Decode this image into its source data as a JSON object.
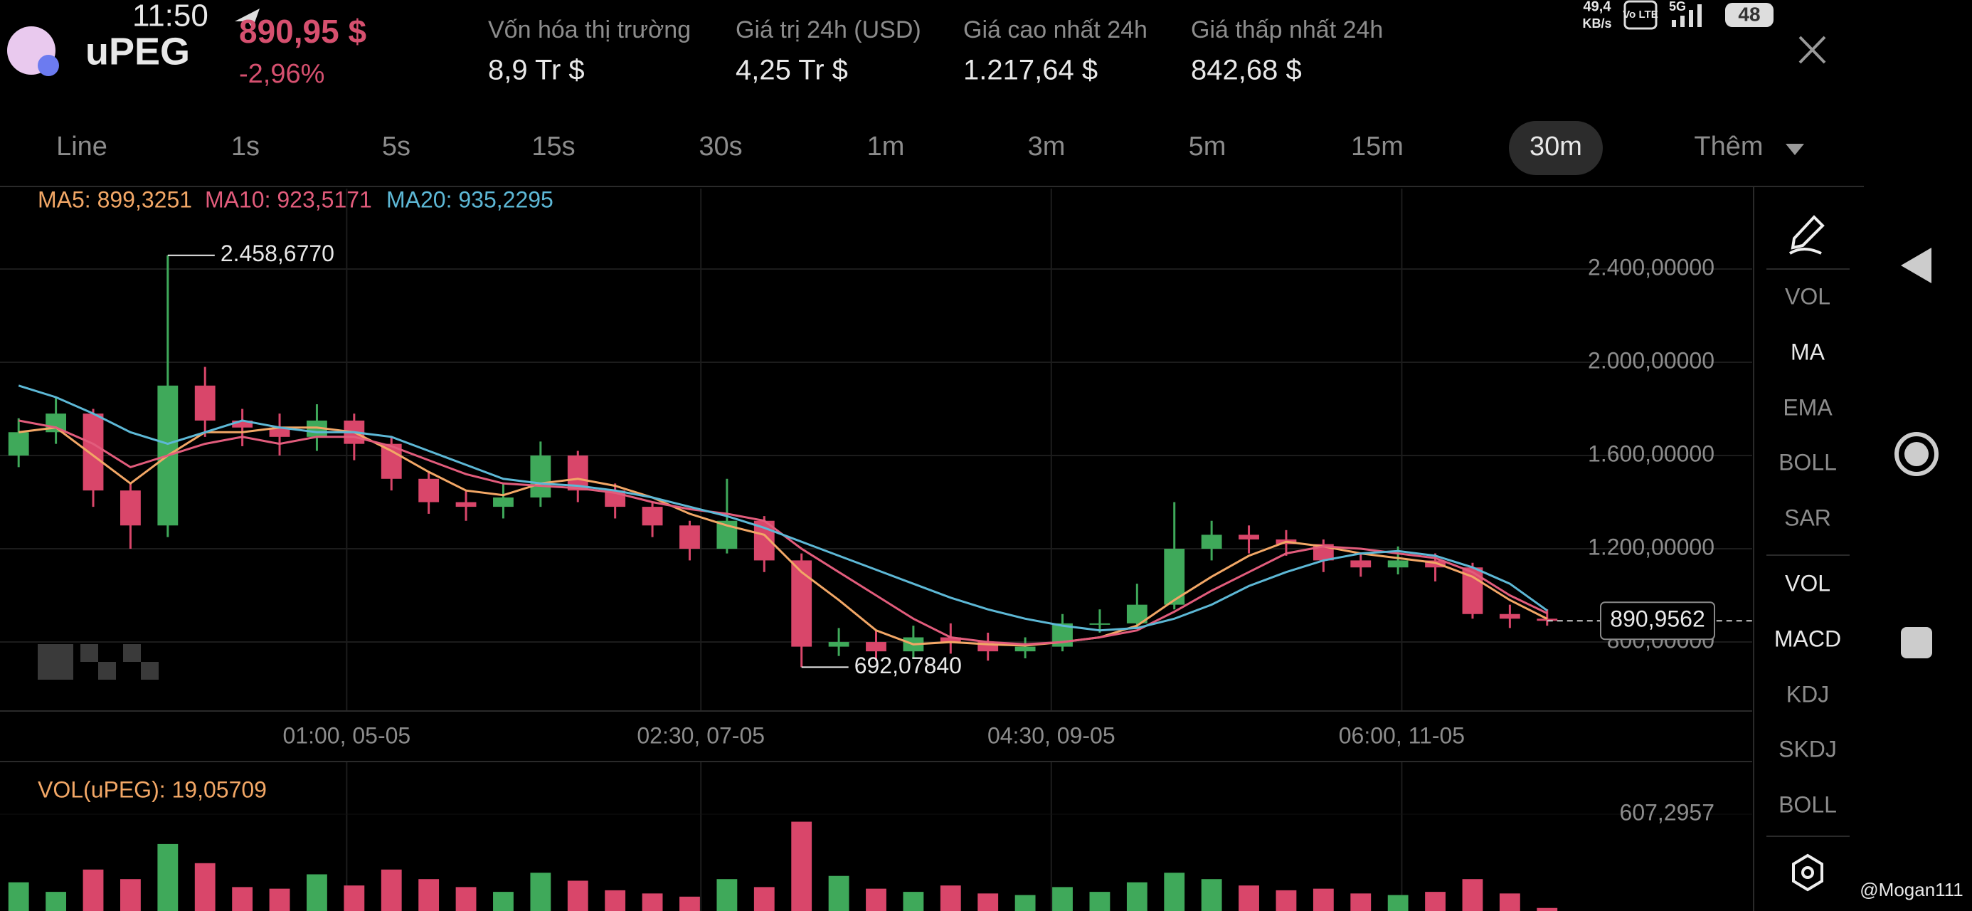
{
  "status_bar": {
    "time": "11:50",
    "net_speed": "49,4",
    "net_unit": "KB/s",
    "volte": "Vo LTE",
    "signal": "5G",
    "battery": "48"
  },
  "header": {
    "symbol": "uPEG",
    "price": "890,95 $",
    "change": "-2,96%",
    "stats": [
      {
        "label": "Vốn hóa thị trường",
        "value": "8,9 Tr $"
      },
      {
        "label": "Giá trị 24h (USD)",
        "value": "4,25 Tr $"
      },
      {
        "label": "Giá cao nhất 24h",
        "value": "1.217,64 $"
      },
      {
        "label": "Giá thấp nhất 24h",
        "value": "842,68 $"
      }
    ]
  },
  "timeframes": {
    "items": [
      "Line",
      "1s",
      "5s",
      "15s",
      "30s",
      "1m",
      "3m",
      "5m",
      "15m",
      "30m",
      "Thêm"
    ],
    "active": 9
  },
  "indicator_menu": {
    "main": [
      "VOL",
      "MA",
      "EMA",
      "BOLL",
      "SAR"
    ],
    "main_active": 1,
    "sub": [
      "VOL",
      "MACD",
      "KDJ",
      "SKDJ",
      "BOLL"
    ],
    "sub_active": [
      0,
      1
    ]
  },
  "watermark": "@Mogan111",
  "chart_data": {
    "type": "candlestick",
    "up_color": "#3fa95a",
    "down_color": "#d9466a",
    "x": [
      0,
      1,
      2,
      3,
      4,
      5,
      6,
      7,
      8,
      9,
      10,
      11,
      12,
      13,
      14,
      15,
      16,
      17,
      18,
      19,
      20,
      21,
      22,
      23,
      24,
      25,
      26,
      27,
      28,
      29,
      30,
      31,
      32,
      33,
      34,
      35,
      36,
      37,
      38,
      39,
      40,
      41
    ],
    "xlim": [
      -0.5,
      46.5
    ],
    "xticks": [
      {
        "value": 8.8,
        "label": "01:00, 05-05"
      },
      {
        "value": 18.3,
        "label": "02:30, 07-05"
      },
      {
        "value": 27.7,
        "label": "04:30, 09-05"
      },
      {
        "value": 37.1,
        "label": "06:00, 11-05"
      }
    ],
    "ylim": [
      504,
      2745
    ],
    "yticks": [
      {
        "value": 800,
        "label": "800,00000"
      },
      {
        "value": 1200,
        "label": "1.200,00000"
      },
      {
        "value": 1600,
        "label": "1.600,00000"
      },
      {
        "value": 2000,
        "label": "2.000,00000"
      },
      {
        "value": 2400,
        "label": "2.400,00000"
      }
    ],
    "open": [
      1600,
      1700,
      1780,
      1450,
      1300,
      1900,
      1750,
      1720,
      1680,
      1750,
      1650,
      1500,
      1400,
      1380,
      1420,
      1600,
      1450,
      1380,
      1300,
      1200,
      1320,
      1150,
      780,
      800,
      760,
      820,
      800,
      760,
      780,
      880,
      880,
      960,
      1200,
      1260,
      1240,
      1220,
      1150,
      1120,
      1150,
      1120,
      920,
      900
    ],
    "high": [
      1760,
      1850,
      1800,
      1480,
      2458.677,
      1980,
      1800,
      1780,
      1820,
      1780,
      1680,
      1530,
      1450,
      1480,
      1660,
      1620,
      1480,
      1400,
      1320,
      1500,
      1340,
      1180,
      860,
      850,
      870,
      880,
      840,
      820,
      920,
      940,
      1050,
      1400,
      1320,
      1300,
      1280,
      1240,
      1180,
      1210,
      1180,
      1140,
      960,
      940
    ],
    "low": [
      1550,
      1650,
      1380,
      1200,
      1250,
      1680,
      1640,
      1600,
      1620,
      1580,
      1450,
      1350,
      1320,
      1330,
      1380,
      1400,
      1330,
      1250,
      1150,
      1180,
      1100,
      692.0784,
      740,
      720,
      730,
      750,
      720,
      730,
      760,
      840,
      860,
      940,
      1150,
      1180,
      1170,
      1100,
      1080,
      1090,
      1060,
      900,
      860,
      870
    ],
    "close": [
      1700,
      1780,
      1450,
      1300,
      1900,
      1750,
      1720,
      1680,
      1750,
      1650,
      1500,
      1400,
      1380,
      1420,
      1600,
      1450,
      1380,
      1300,
      1200,
      1320,
      1150,
      780,
      800,
      760,
      820,
      800,
      760,
      780,
      880,
      880,
      960,
      1200,
      1260,
      1240,
      1220,
      1150,
      1120,
      1150,
      1120,
      920,
      900,
      890.9562
    ],
    "series": [
      {
        "label": "MA5: 899,3251",
        "color": "#f2a766",
        "values": [
          1700,
          1720,
          1600,
          1480,
          1600,
          1700,
          1700,
          1720,
          1720,
          1700,
          1620,
          1530,
          1450,
          1430,
          1480,
          1500,
          1470,
          1420,
          1350,
          1300,
          1260,
          1100,
          980,
          850,
          790,
          800,
          790,
          785,
          800,
          820,
          870,
          980,
          1080,
          1170,
          1230,
          1210,
          1180,
          1160,
          1140,
          1080,
          980,
          899.3251
        ]
      },
      {
        "label": "MA10: 923,5171",
        "color": "#e25c7c",
        "values": [
          1750,
          1720,
          1650,
          1550,
          1600,
          1650,
          1680,
          1650,
          1680,
          1680,
          1640,
          1580,
          1520,
          1480,
          1470,
          1460,
          1440,
          1400,
          1370,
          1350,
          1320,
          1200,
          1100,
          1000,
          900,
          820,
          800,
          790,
          800,
          820,
          850,
          930,
          1020,
          1100,
          1180,
          1210,
          1200,
          1180,
          1160,
          1100,
          1000,
          923.5171
        ]
      },
      {
        "label": "MA20: 935,2295",
        "color": "#5db8d6",
        "values": [
          1900,
          1850,
          1780,
          1700,
          1650,
          1700,
          1750,
          1720,
          1700,
          1700,
          1680,
          1620,
          1560,
          1500,
          1480,
          1470,
          1450,
          1420,
          1380,
          1340,
          1290,
          1230,
          1170,
          1110,
          1050,
          990,
          940,
          900,
          870,
          850,
          860,
          900,
          960,
          1040,
          1100,
          1150,
          1180,
          1190,
          1170,
          1120,
          1050,
          935.2295
        ]
      }
    ],
    "annotations": {
      "max": {
        "x": 4,
        "value": 2458.677,
        "label": "2.458,6770"
      },
      "min": {
        "x": 21,
        "value": 692.0784,
        "label": "692,07840"
      }
    },
    "current": {
      "value": 890.9562,
      "label": "890,9562"
    },
    "volume": {
      "label": "VOL(uPEG): 19,05709",
      "ylim": [
        0,
        915
      ],
      "yticks": [
        {
          "value": 607.2957,
          "label": "607,2957"
        }
      ],
      "values": [
        180,
        120,
        260,
        200,
        420,
        300,
        150,
        140,
        230,
        160,
        260,
        200,
        150,
        120,
        240,
        190,
        130,
        110,
        90,
        200,
        150,
        560,
        220,
        140,
        120,
        160,
        110,
        100,
        150,
        120,
        180,
        240,
        200,
        160,
        130,
        140,
        110,
        100,
        120,
        200,
        110,
        19.05709
      ]
    }
  }
}
